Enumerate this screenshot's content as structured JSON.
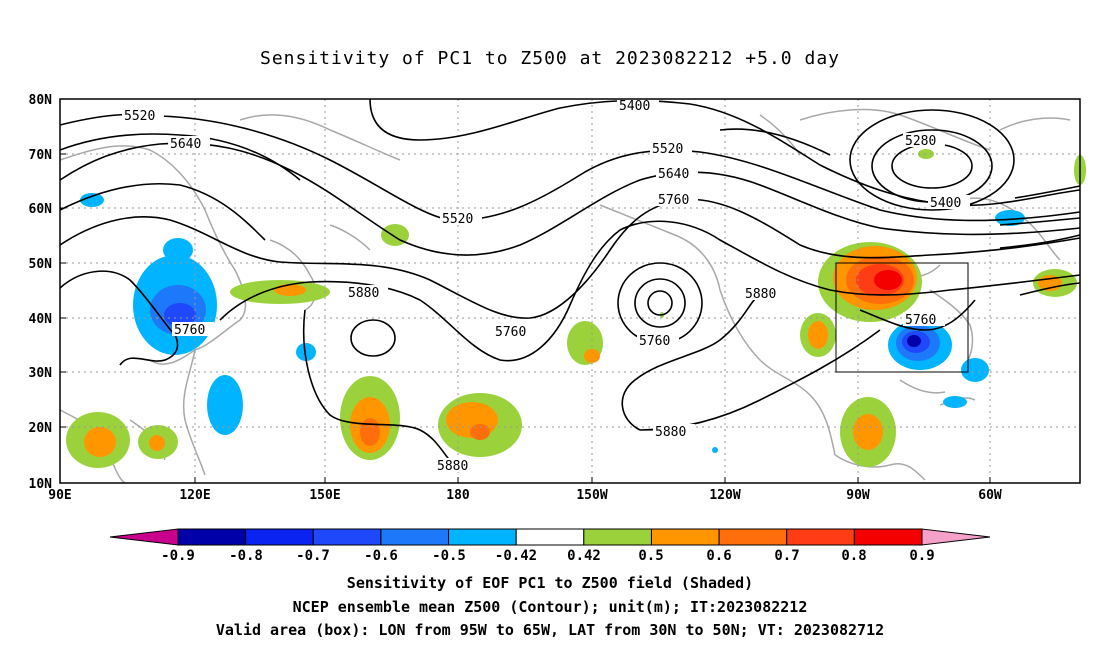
{
  "title": "Sensitivity of PC1 to Z500 at 2023082212 +5.0 day",
  "map": {
    "lat_labels": [
      "80N",
      "70N",
      "60N",
      "50N",
      "40N",
      "30N",
      "20N",
      "10N"
    ],
    "lon_labels": [
      "90E",
      "120E",
      "150E",
      "180",
      "150W",
      "120W",
      "90W",
      "60W"
    ],
    "contour_labels": [
      "5520",
      "5640",
      "5400",
      "5520",
      "5640",
      "5760",
      "5280",
      "5400",
      "5520",
      "5880",
      "5760",
      "5760",
      "5880",
      "5760",
      "5880",
      "5880"
    ],
    "valid_box": {
      "lon_from": "95W",
      "lon_to": "65W",
      "lat_from": "30N",
      "lat_to": "50N"
    }
  },
  "colorbar": {
    "labels": [
      "-0.9",
      "-0.8",
      "-0.7",
      "-0.6",
      "-0.5",
      "-0.42",
      "0.42",
      "0.5",
      "0.6",
      "0.7",
      "0.8",
      "0.9"
    ],
    "colors": [
      "#0000a8",
      "#0a23f0",
      "#1e48fa",
      "#1e78fa",
      "#00b4ff",
      "#ffffff",
      "#9bd23c",
      "#ff9600",
      "#ff6e0a",
      "#ff3c14",
      "#f50000"
    ],
    "low_triangle": "#c8008c",
    "high_triangle": "#f5a0c8"
  },
  "captions": {
    "line1": "Sensitivity of EOF PC1 to Z500 field (Shaded)",
    "line2": "NCEP ensemble mean Z500 (Contour); unit(m); IT:2023082212",
    "line3": "Valid area (box): LON from 95W to 65W, LAT from 30N to 50N; VT: 2023082712"
  }
}
